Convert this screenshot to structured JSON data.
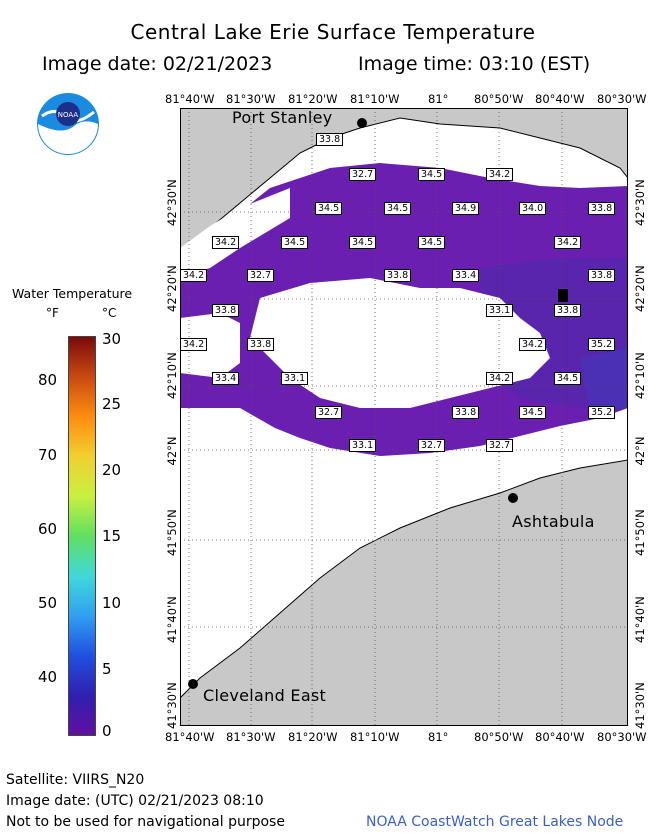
{
  "header": {
    "title": "Central Lake Erie Surface Temperature",
    "image_date": "Image date: 02/21/2023",
    "image_time": "Image time: 03:10 (EST)"
  },
  "logo": {
    "text": "NOAA",
    "icon": "noaa-logo-icon"
  },
  "map": {
    "lon_labels": [
      "81°40'W",
      "81°30'W",
      "81°20'W",
      "81°10'W",
      "81°",
      "80°50'W",
      "80°40'W",
      "80°30'W"
    ],
    "lat_labels": [
      "42°30'N",
      "42°20'N",
      "42°10'N",
      "42°N",
      "41°50'N",
      "41°40'N",
      "41°30'N"
    ],
    "places": {
      "port_stanley": "Port Stanley",
      "ashtabula": "Ashtabula",
      "cleveland_east": "Cleveland East"
    },
    "temperature_labels": [
      "33.8",
      "32.7",
      "34.5",
      "34.2",
      "34.5",
      "34.5",
      "34.9",
      "34.0",
      "33.8",
      "34.2",
      "34.5",
      "34.5",
      "34.5",
      "34.2",
      "34.2",
      "32.7",
      "33.8",
      "33.4",
      "33.8",
      "33.8",
      "33.1",
      "33.8",
      "34.2",
      "33.8",
      "34.2",
      "35.2",
      "33.4",
      "33.1",
      "34.2",
      "34.5",
      "32.7",
      "33.8",
      "34.5",
      "35.2",
      "33.1",
      "32.7",
      "32.7"
    ],
    "colors": {
      "land": "#c8c8c8",
      "water_cloud": "#ffffff",
      "cold_water": "#6a1fb0",
      "colder_water": "#5522a8",
      "warmest_water": "#4b2fb5"
    }
  },
  "legend": {
    "title": "Water Temperature",
    "f_label": "°F",
    "c_label": "°C",
    "f_ticks": [
      "80",
      "70",
      "60",
      "50",
      "40"
    ],
    "c_ticks": [
      "30",
      "25",
      "20",
      "15",
      "10",
      "5",
      "0"
    ],
    "colorbar": [
      "#7a0a0a",
      "#c84a10",
      "#ff8c10",
      "#f0d030",
      "#c8f040",
      "#60e060",
      "#40d8d8",
      "#30a0f0",
      "#2050e0",
      "#3020b0",
      "#6010a0"
    ]
  },
  "footer": {
    "satellite": "Satellite: VIIRS_N20",
    "utc_date": "Image date: (UTC) 02/21/2023  08:10",
    "disclaimer": "Not to be used for navigational purpose",
    "credit": "NOAA CoastWatch Great Lakes Node"
  }
}
